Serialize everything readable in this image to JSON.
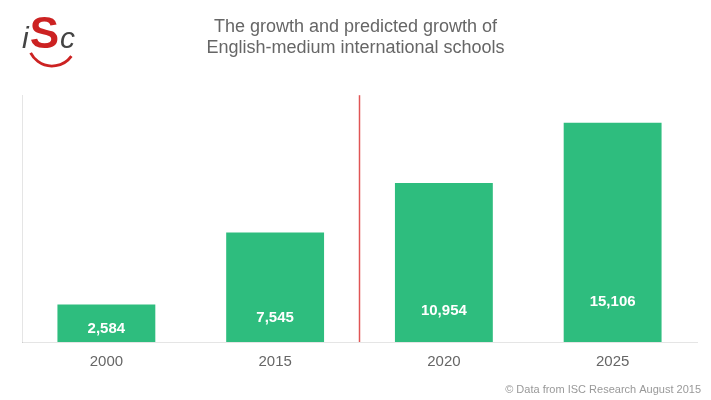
{
  "chart_data": {
    "type": "bar",
    "title": [
      "The growth and predicted growth of",
      "English-medium international schools"
    ],
    "categories": [
      "2000",
      "2015",
      "2020",
      "2025"
    ],
    "values": [
      2584,
      7545,
      10954,
      15106
    ],
    "value_labels": [
      "2,584",
      "7,545",
      "10,954",
      "15,106"
    ],
    "data_labels": true,
    "color": "#2ebd7e",
    "ylim": [
      0,
      17000
    ],
    "yticks": [],
    "tick_labels": "x",
    "grid": false,
    "annotations": [
      {
        "text": "© Data from ISC Research August 2015",
        "color": "#999999"
      },
      {
        "text": "iSc",
        "colors": [
          "#444444",
          "#cc2222",
          "#444444"
        ]
      },
      {
        "type": "line",
        "after": "2015",
        "color": "#e05555"
      }
    ]
  }
}
